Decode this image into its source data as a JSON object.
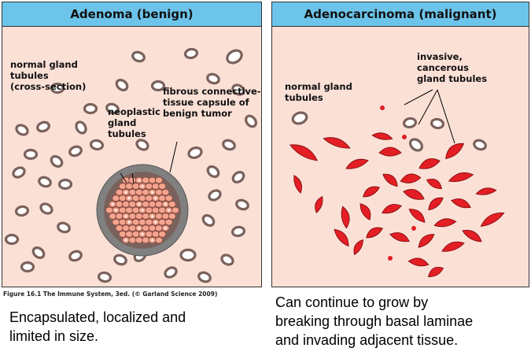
{
  "left_panel": {
    "title": "Adenoma (benign)",
    "label_normal": "normal gland\ntubules\n(cross-section)",
    "label_neoplastic": "neoplastic\ngland\ntubules",
    "label_capsule": "fibrous connective-\ntissue capsule of\nbenign tumor"
  },
  "right_panel": {
    "title": "Adenocarcinoma (malignant)",
    "label_normal": "normal gland\ntubules",
    "label_invasive": "invasive,\ncancerous\ngland tubules"
  },
  "credit": "Figure 16.1 The Immune System, 3ed. (© Garland Science 2009)",
  "caption_left": "Encapsulated, localized and\nlimited in size.",
  "caption_right": "Can continue to grow by\nbreaking through basal laminae\nand invading adjacent tissue.",
  "colors": {
    "header": "#6cc4ea",
    "background": "#fbe0d6",
    "tubule_wall": "#7a625c",
    "tumor_cell": "#f4a48e",
    "capsule": "#808080",
    "malignant": "#e31e24"
  }
}
